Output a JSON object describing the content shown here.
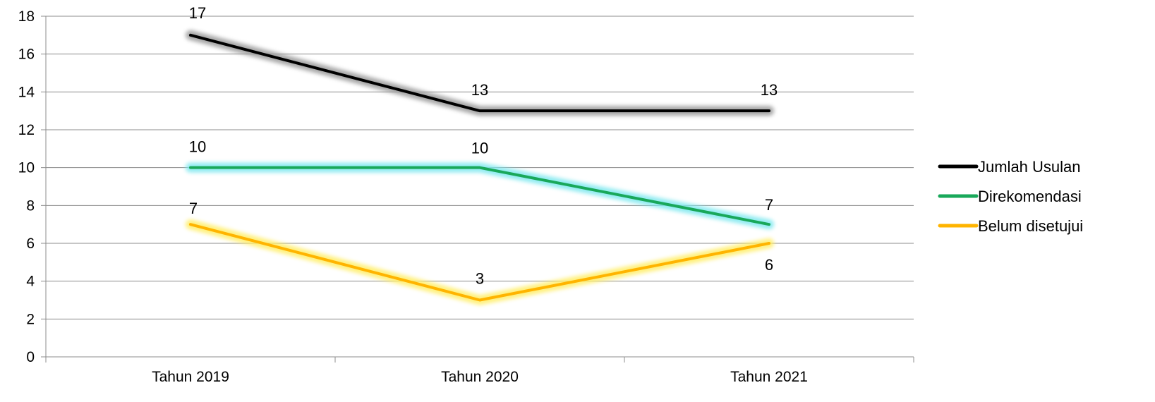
{
  "chart_data": {
    "type": "line",
    "categories": [
      "Tahun 2019",
      "Tahun 2020",
      "Tahun 2021"
    ],
    "series": [
      {
        "name": "Jumlah Usulan",
        "values": [
          17,
          13,
          13
        ],
        "color": "#000000",
        "glow": "#9a9a9a",
        "labels": [
          "17",
          "13",
          "13"
        ]
      },
      {
        "name": "Direkomendasi",
        "values": [
          10,
          10,
          7
        ],
        "color": "#19a85a",
        "glow": "#7fe8ef",
        "labels": [
          "10",
          "10",
          "7"
        ]
      },
      {
        "name": "Belum disetujui",
        "values": [
          7,
          3,
          6
        ],
        "color": "#ffb400",
        "glow": "#ffee66",
        "labels": [
          "7",
          "3",
          "6"
        ]
      }
    ],
    "ylim": [
      0,
      18
    ],
    "yticks": [
      0,
      2,
      4,
      6,
      8,
      10,
      12,
      14,
      16,
      18
    ],
    "grid": true,
    "legend": "right"
  }
}
